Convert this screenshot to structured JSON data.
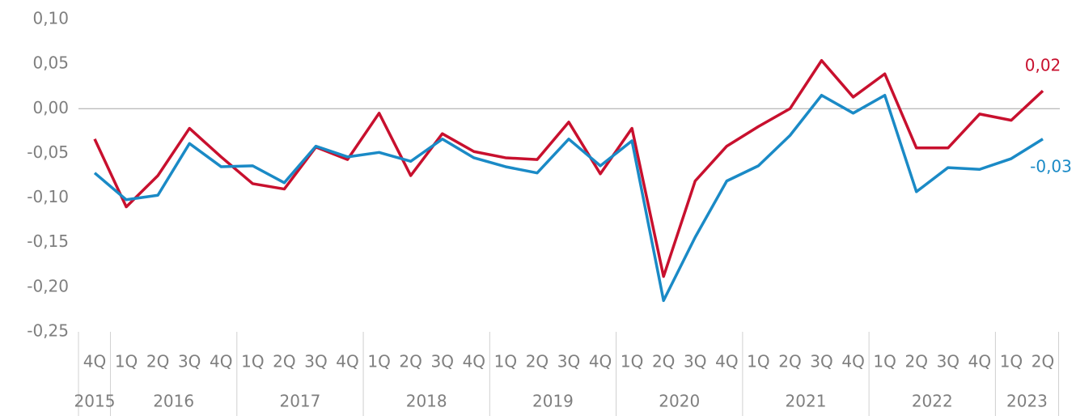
{
  "chart_data": {
    "type": "line",
    "categories": [
      "4Q",
      "1Q",
      "2Q",
      "3Q",
      "4Q",
      "1Q",
      "2Q",
      "3Q",
      "4Q",
      "1Q",
      "2Q",
      "3Q",
      "4Q",
      "1Q",
      "2Q",
      "3Q",
      "4Q",
      "1Q",
      "2Q",
      "3Q",
      "4Q",
      "1Q",
      "2Q",
      "3Q",
      "4Q",
      "1Q",
      "2Q",
      "3Q",
      "4Q",
      "1Q",
      "2Q"
    ],
    "years": [
      "2015",
      "2016",
      "2017",
      "2018",
      "2019",
      "2020",
      "2021",
      "2022",
      "2023"
    ],
    "series": [
      {
        "color": "#c8102e",
        "last_label": "0,02",
        "values": [
          -0.034,
          -0.11,
          -0.075,
          -0.022,
          -0.054,
          -0.084,
          -0.09,
          -0.043,
          -0.057,
          -0.005,
          -0.075,
          -0.028,
          -0.048,
          -0.055,
          -0.057,
          -0.015,
          -0.073,
          -0.022,
          -0.188,
          -0.081,
          -0.042,
          -0.02,
          0.0,
          0.054,
          0.013,
          0.039,
          -0.044,
          -0.044,
          -0.006,
          -0.013,
          0.02
        ]
      },
      {
        "color": "#1a8ac6",
        "last_label": "-0,03",
        "values": [
          -0.072,
          -0.102,
          -0.097,
          -0.039,
          -0.065,
          -0.064,
          -0.083,
          -0.042,
          -0.054,
          -0.049,
          -0.059,
          -0.034,
          -0.055,
          -0.065,
          -0.072,
          -0.034,
          -0.064,
          -0.036,
          -0.215,
          -0.144,
          -0.081,
          -0.064,
          -0.03,
          0.015,
          -0.005,
          0.015,
          -0.093,
          -0.066,
          -0.068,
          -0.056,
          -0.034
        ]
      }
    ],
    "ylim": [
      -0.25,
      0.1
    ],
    "yticks": [
      {
        "value": 0.1,
        "label": "0,10"
      },
      {
        "value": 0.05,
        "label": "0,05"
      },
      {
        "value": 0,
        "label": "0,00"
      },
      {
        "value": -0.05,
        "label": "-0,05"
      },
      {
        "value": -0.1,
        "label": "-0,10"
      },
      {
        "value": -0.15,
        "label": "-0,15"
      },
      {
        "value": -0.2,
        "label": "-0,20"
      },
      {
        "value": -0.25,
        "label": "-0,25"
      }
    ],
    "zero_line": true
  }
}
